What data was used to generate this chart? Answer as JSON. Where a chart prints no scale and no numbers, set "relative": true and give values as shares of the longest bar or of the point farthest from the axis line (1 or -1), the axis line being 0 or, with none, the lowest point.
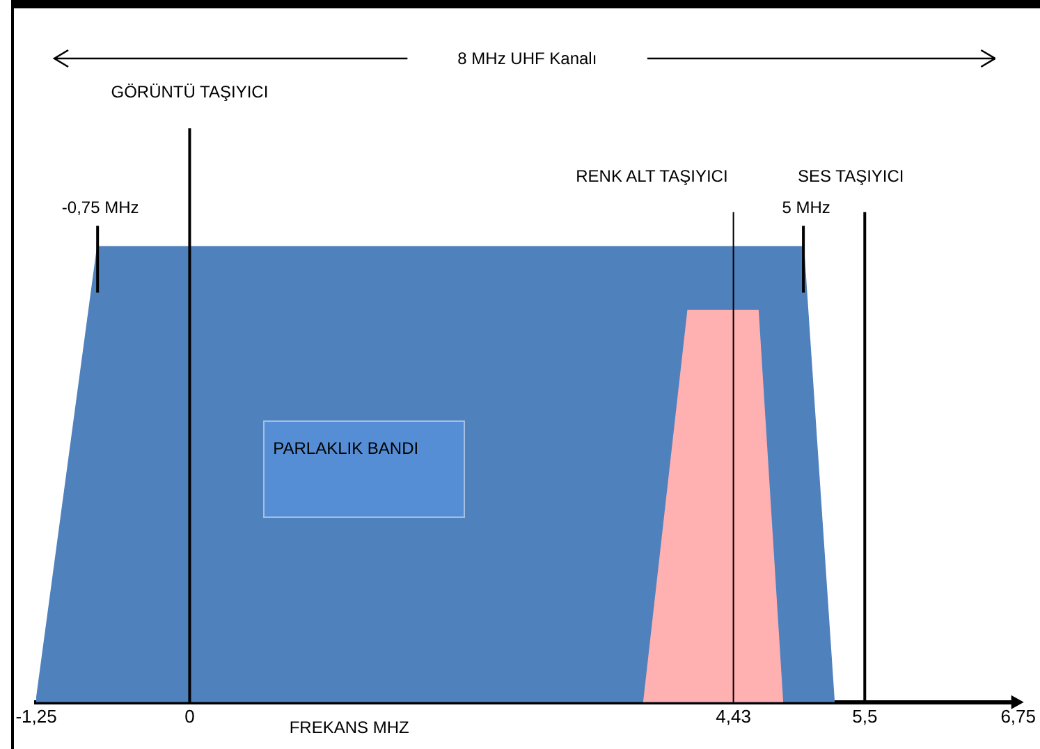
{
  "chart_data": {
    "type": "area",
    "relative": true,
    "xlabel": "FREKANS MHZ",
    "xlim": [
      -1.25,
      6.75
    ],
    "xticks": [
      {
        "value": -1.25,
        "label": "-1,25"
      },
      0,
      {
        "value": 4.43,
        "label": "4,43"
      },
      {
        "value": 5.5,
        "label": "5,5"
      },
      {
        "value": 6.75,
        "label": "6,75"
      }
    ],
    "series": [
      {
        "color": "#4f81bd",
        "x": [
          -1.25,
          -0.75,
          5,
          5.25
        ],
        "values": [
          0,
          1,
          1,
          0
        ]
      },
      {
        "color": "#ffb0b0",
        "x": [
          3.7,
          4.06,
          4.63,
          4.83
        ],
        "values": [
          0,
          0.86,
          0.86,
          0
        ]
      }
    ],
    "ref_lines": [
      {
        "axis": "x",
        "value": 0,
        "label": "GÖRÜNTÜ TAŞIYICI",
        "color": "#000000"
      },
      {
        "axis": "x",
        "value": 4.43,
        "label": "RENK ALT TAŞIYICI",
        "color": "#000000"
      },
      {
        "axis": "x",
        "value": 5.5,
        "label": "SES TAŞIYICI",
        "color": "#000000"
      }
    ],
    "annotations": [
      "8 MHz UHF Kanalı",
      "PARLAKLIK BANDI",
      {
        "text": "-0,75 MHz",
        "x": -0.75,
        "y": 1
      },
      {
        "text": "5 MHz",
        "x": 5,
        "y": 1
      }
    ],
    "grid": false,
    "legend": false
  }
}
